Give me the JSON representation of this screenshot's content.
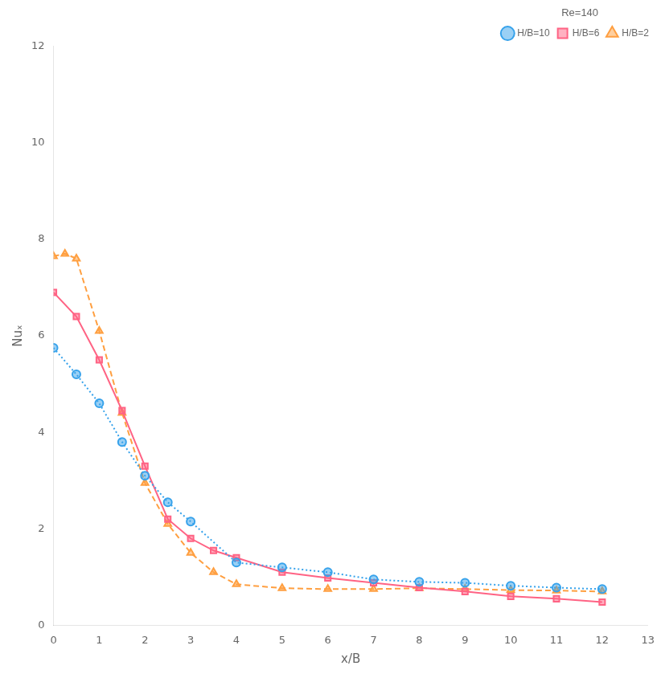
{
  "chart_data": {
    "type": "line",
    "xlabel": "x/B",
    "ylabel": "Nuₓ",
    "xlim": [
      0,
      13
    ],
    "ylim": [
      0,
      12
    ],
    "xticks": [
      0,
      1,
      2,
      3,
      4,
      5,
      6,
      7,
      8,
      9,
      10,
      11,
      12,
      13
    ],
    "yticks": [
      0,
      2,
      4,
      6,
      8,
      10,
      12
    ],
    "grid": false,
    "legend": "upper right",
    "legend_title": "Re=140",
    "series": [
      {
        "name": "H/B=10",
        "line_style": "dotted",
        "marker": "circle",
        "x": [
          0,
          0.5,
          1.0,
          1.5,
          2.0,
          2.5,
          3.0,
          4.0,
          5.0,
          6.0,
          7.0,
          8.0,
          9.0,
          10.0,
          11.0,
          12.0
        ],
        "values": [
          5.75,
          5.2,
          4.6,
          3.8,
          3.1,
          2.55,
          2.15,
          1.3,
          1.2,
          1.1,
          0.95,
          0.9,
          0.88,
          0.82,
          0.78,
          0.75
        ]
      },
      {
        "name": "H/B=6",
        "line_style": "solid",
        "marker": "square",
        "x": [
          0,
          0.5,
          1.0,
          1.5,
          2.0,
          2.5,
          3.0,
          3.5,
          4.0,
          5.0,
          6.0,
          7.0,
          8.0,
          9.0,
          10.0,
          11.0,
          12.0
        ],
        "values": [
          6.9,
          6.4,
          5.5,
          4.45,
          3.3,
          2.2,
          1.8,
          1.55,
          1.4,
          1.1,
          0.98,
          0.88,
          0.78,
          0.7,
          0.6,
          0.55,
          0.48
        ]
      },
      {
        "name": "H/B=2",
        "line_style": "dashed",
        "marker": "triangle",
        "x": [
          0,
          0.25,
          0.5,
          1.0,
          1.5,
          2.0,
          2.5,
          3.0,
          3.5,
          4.0,
          5.0,
          6.0,
          7.0,
          8.0,
          9.0,
          10.0,
          11.0,
          12.0
        ],
        "values": [
          7.65,
          7.7,
          7.6,
          6.1,
          4.4,
          2.95,
          2.1,
          1.5,
          1.1,
          0.85,
          0.77,
          0.75,
          0.75,
          0.77,
          0.75,
          0.73,
          0.72,
          0.7
        ]
      }
    ]
  }
}
